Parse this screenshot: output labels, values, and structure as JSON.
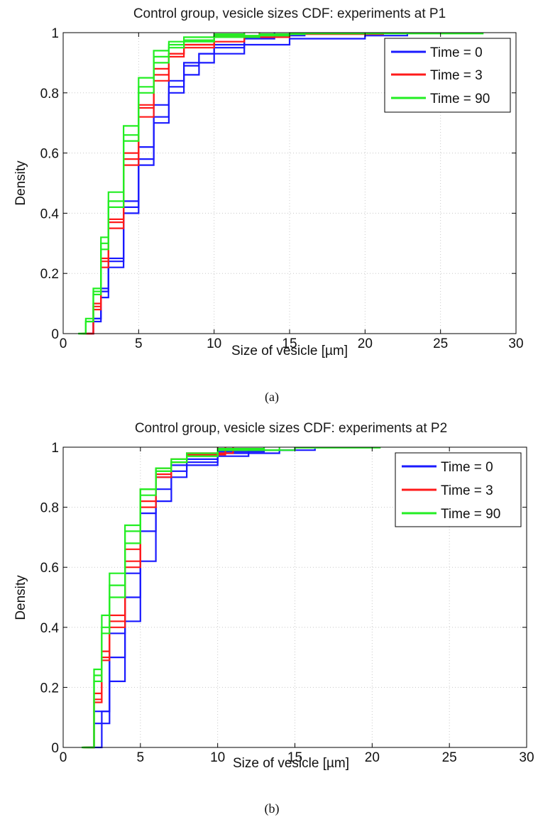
{
  "chart_data": [
    {
      "type": "line",
      "title": "Control group, vesicle sizes CDF: experiments at P1",
      "xlabel": "Size of vesicle [µm]",
      "ylabel": "Density",
      "caption": "(a)",
      "xlim": [
        0,
        30
      ],
      "ylim": [
        0,
        1
      ],
      "xticks": [
        "0",
        "5",
        "10",
        "15",
        "20",
        "25",
        "30"
      ],
      "yticks": [
        "0",
        "0.2",
        "0.4",
        "0.6",
        "0.8",
        "1"
      ],
      "grid": true,
      "legend_position": "top-right",
      "legend": [
        "Time = 0",
        "Time = 3",
        "Time = 90"
      ],
      "colors": {
        "Time = 0": "#1a1aff",
        "Time = 3": "#ff1a1a",
        "Time = 90": "#22ee22"
      },
      "series": [
        {
          "group": "Time = 0",
          "x": [
            1.5,
            2.0,
            2.5,
            3.0,
            4.0,
            5.0,
            6.0,
            7.0,
            8.0,
            9.0,
            10.0,
            12.0,
            15.0,
            20.0,
            22.8
          ],
          "y": [
            0.0,
            0.04,
            0.12,
            0.22,
            0.4,
            0.56,
            0.7,
            0.8,
            0.86,
            0.9,
            0.93,
            0.96,
            0.98,
            0.99,
            0.995
          ]
        },
        {
          "group": "Time = 0",
          "x": [
            1.5,
            2.0,
            2.5,
            3.0,
            4.0,
            5.0,
            6.0,
            7.0,
            8.0,
            9.0,
            10.0,
            12.0,
            14.0,
            16.0
          ],
          "y": [
            0.0,
            0.05,
            0.15,
            0.25,
            0.44,
            0.62,
            0.76,
            0.84,
            0.9,
            0.93,
            0.95,
            0.98,
            0.99,
            1.0
          ]
        },
        {
          "group": "Time = 0",
          "x": [
            1.5,
            2.0,
            2.5,
            3.0,
            4.0,
            5.0,
            6.0,
            7.0,
            8.0,
            9.0,
            10.0,
            12.0,
            14.0
          ],
          "y": [
            0.0,
            0.05,
            0.14,
            0.24,
            0.42,
            0.58,
            0.72,
            0.82,
            0.89,
            0.93,
            0.96,
            0.985,
            1.0
          ]
        },
        {
          "group": "Time = 3",
          "x": [
            1.2,
            2.0,
            2.5,
            3.0,
            4.0,
            5.0,
            6.0,
            7.0,
            8.0,
            10.0,
            12.0,
            15.0,
            21.2
          ],
          "y": [
            0.0,
            0.1,
            0.25,
            0.38,
            0.6,
            0.76,
            0.88,
            0.93,
            0.95,
            0.97,
            0.985,
            0.995,
            1.0
          ]
        },
        {
          "group": "Time = 3",
          "x": [
            1.3,
            2.0,
            2.5,
            3.0,
            4.0,
            5.0,
            6.0,
            7.0,
            8.0,
            10.0,
            12.0
          ],
          "y": [
            0.0,
            0.08,
            0.22,
            0.35,
            0.56,
            0.72,
            0.84,
            0.92,
            0.96,
            0.99,
            1.0
          ]
        },
        {
          "group": "Time = 3",
          "x": [
            1.3,
            2.0,
            2.5,
            3.0,
            4.0,
            5.0,
            6.0,
            7.0,
            8.0,
            10.0,
            13.0
          ],
          "y": [
            0.0,
            0.09,
            0.24,
            0.37,
            0.58,
            0.75,
            0.86,
            0.93,
            0.96,
            0.985,
            1.0
          ]
        },
        {
          "group": "Time = 90",
          "x": [
            1.0,
            1.5,
            2.0,
            2.5,
            3.0,
            4.0,
            5.0,
            6.0,
            7.0,
            8.0,
            10.0,
            15.0,
            27.8
          ],
          "y": [
            0.0,
            0.04,
            0.14,
            0.3,
            0.44,
            0.66,
            0.82,
            0.92,
            0.96,
            0.975,
            0.99,
            0.997,
            1.0
          ]
        },
        {
          "group": "Time = 90",
          "x": [
            1.0,
            1.5,
            2.0,
            2.5,
            3.0,
            4.0,
            5.0,
            6.0,
            7.0,
            8.0,
            10.0,
            13.0,
            16.0
          ],
          "y": [
            0.0,
            0.04,
            0.13,
            0.28,
            0.42,
            0.64,
            0.8,
            0.9,
            0.95,
            0.97,
            0.985,
            0.995,
            1.0
          ]
        },
        {
          "group": "Time = 90",
          "x": [
            1.0,
            1.5,
            2.0,
            2.5,
            3.0,
            4.0,
            5.0,
            6.0,
            7.0,
            8.0,
            10.0,
            12.0
          ],
          "y": [
            0.0,
            0.05,
            0.15,
            0.32,
            0.47,
            0.69,
            0.85,
            0.94,
            0.97,
            0.985,
            0.995,
            1.0
          ]
        }
      ]
    },
    {
      "type": "line",
      "title": "Control group, vesicle sizes CDF: experiments at P2",
      "xlabel": "Size of vesicle [µm]",
      "ylabel": "Density",
      "caption": "(b)",
      "xlim": [
        0,
        30
      ],
      "ylim": [
        0,
        1
      ],
      "xticks": [
        "0",
        "5",
        "10",
        "15",
        "20",
        "25",
        "30"
      ],
      "yticks": [
        "0",
        "0.2",
        "0.4",
        "0.6",
        "0.8",
        "1"
      ],
      "grid": true,
      "legend_position": "top-right",
      "legend": [
        "Time = 0",
        "Time = 3",
        "Time = 90"
      ],
      "colors": {
        "Time = 0": "#1a1aff",
        "Time = 3": "#ff1a1a",
        "Time = 90": "#22ee22"
      },
      "series": [
        {
          "group": "Time = 0",
          "x": [
            1.8,
            2.5,
            3.0,
            4.0,
            5.0,
            6.0,
            7.0,
            8.0,
            10.0,
            12.0,
            14.0,
            16.3
          ],
          "y": [
            0.0,
            0.12,
            0.22,
            0.42,
            0.62,
            0.82,
            0.9,
            0.94,
            0.97,
            0.98,
            0.99,
            0.995
          ]
        },
        {
          "group": "Time = 0",
          "x": [
            1.6,
            2.0,
            3.0,
            4.0,
            5.0,
            6.0,
            7.0,
            8.0,
            10.0,
            12.0,
            15.0
          ],
          "y": [
            0.0,
            0.08,
            0.3,
            0.5,
            0.72,
            0.86,
            0.92,
            0.95,
            0.98,
            0.99,
            1.0
          ]
        },
        {
          "group": "Time = 0",
          "x": [
            1.5,
            2.0,
            3.0,
            4.0,
            5.0,
            6.0,
            7.0,
            8.0,
            10.0,
            13.0
          ],
          "y": [
            0.0,
            0.12,
            0.38,
            0.58,
            0.78,
            0.9,
            0.94,
            0.96,
            0.985,
            1.0
          ]
        },
        {
          "group": "Time = 3",
          "x": [
            1.3,
            2.0,
            2.5,
            3.0,
            4.0,
            5.0,
            6.0,
            7.0,
            8.0,
            10.0
          ],
          "y": [
            0.0,
            0.18,
            0.32,
            0.44,
            0.66,
            0.86,
            0.93,
            0.96,
            0.98,
            1.0
          ]
        },
        {
          "group": "Time = 3",
          "x": [
            1.3,
            2.0,
            2.5,
            3.0,
            4.0,
            5.0,
            6.0,
            7.0,
            8.0,
            11.0
          ],
          "y": [
            0.0,
            0.16,
            0.3,
            0.42,
            0.62,
            0.82,
            0.91,
            0.95,
            0.98,
            1.0
          ]
        },
        {
          "group": "Time = 3",
          "x": [
            1.4,
            2.0,
            2.5,
            3.0,
            4.0,
            5.0,
            6.0,
            7.0,
            8.0,
            10.5
          ],
          "y": [
            0.0,
            0.15,
            0.29,
            0.4,
            0.6,
            0.8,
            0.9,
            0.95,
            0.975,
            1.0
          ]
        },
        {
          "group": "Time = 90",
          "x": [
            1.2,
            2.0,
            2.5,
            3.0,
            4.0,
            5.0,
            6.0,
            7.0,
            8.0,
            10.0,
            15.0,
            20.5
          ],
          "y": [
            0.0,
            0.26,
            0.44,
            0.58,
            0.74,
            0.86,
            0.92,
            0.95,
            0.97,
            0.99,
            0.998,
            1.0
          ]
        },
        {
          "group": "Time = 90",
          "x": [
            1.3,
            2.0,
            2.5,
            3.0,
            4.0,
            5.0,
            6.0,
            7.0,
            8.0,
            10.0,
            14.0
          ],
          "y": [
            0.0,
            0.22,
            0.38,
            0.5,
            0.68,
            0.84,
            0.92,
            0.95,
            0.97,
            0.99,
            1.0
          ]
        },
        {
          "group": "Time = 90",
          "x": [
            1.2,
            2.0,
            2.5,
            3.0,
            4.0,
            5.0,
            6.0,
            7.0,
            8.0,
            10.0,
            13.0
          ],
          "y": [
            0.0,
            0.24,
            0.4,
            0.54,
            0.72,
            0.86,
            0.93,
            0.96,
            0.98,
            0.995,
            1.0
          ]
        }
      ]
    }
  ]
}
